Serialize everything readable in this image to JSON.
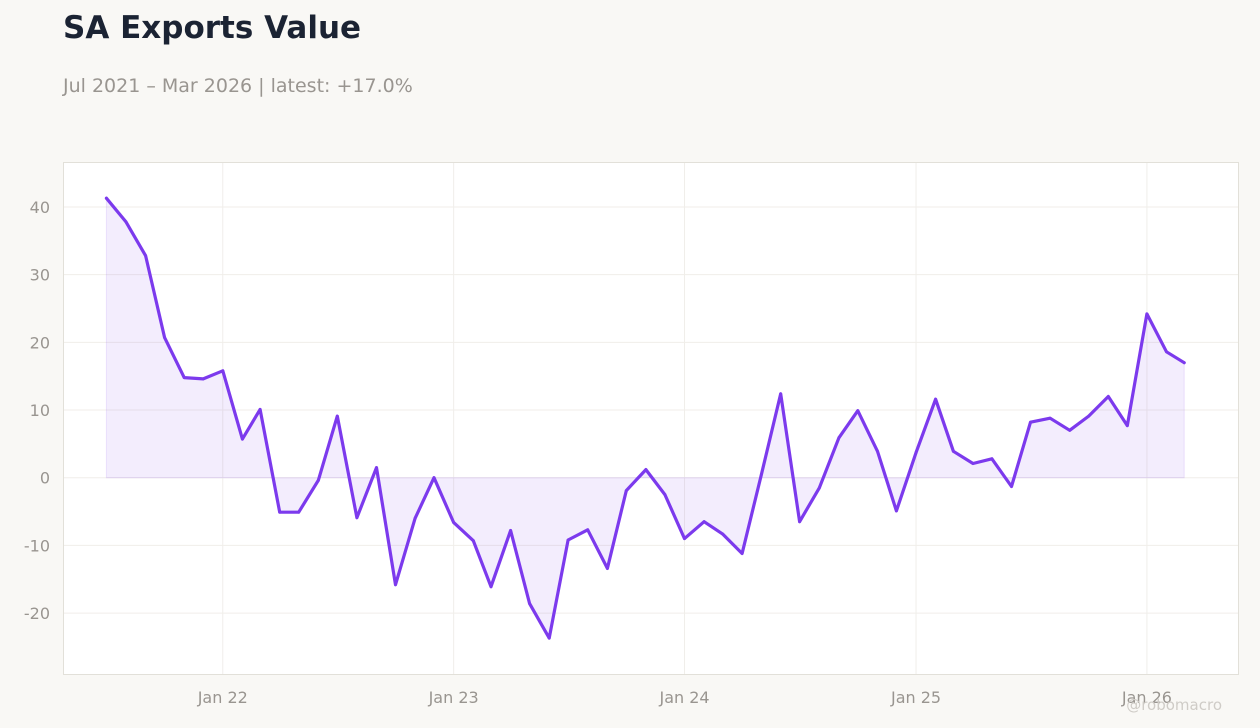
{
  "header": {
    "title": "SA Exports Value",
    "subtitle": "Jul 2021 – Mar 2026 | latest: +17.0%"
  },
  "watermark": "@robomacro",
  "colors": {
    "line": "#7c3aed",
    "fill": "#7c3aed",
    "background": "#f9f8f5",
    "plot_background": "#ffffff",
    "text_muted": "#999590",
    "title": "#1b2333"
  },
  "chart_data": {
    "type": "area",
    "title": "SA Exports Value",
    "subtitle": "Jul 2021 – Mar 2026 | latest: +17.0%",
    "xlabel": "",
    "ylabel": "",
    "ylim": [
      -29,
      46.5
    ],
    "xlim": [
      "2021-04-25",
      "2026-05-25"
    ],
    "grid": true,
    "legend": "none",
    "x_ticks": [
      {
        "date": "2022-01-01",
        "label": "Jan 22"
      },
      {
        "date": "2023-01-01",
        "label": "Jan 23"
      },
      {
        "date": "2024-01-01",
        "label": "Jan 24"
      },
      {
        "date": "2025-01-01",
        "label": "Jan 25"
      },
      {
        "date": "2026-01-01",
        "label": "Jan 26"
      }
    ],
    "y_ticks": [
      40,
      30,
      20,
      10,
      0,
      -10,
      -20
    ],
    "y_tick_labels": [
      "40",
      "30",
      "20",
      "10",
      "0",
      "-10",
      "-20"
    ],
    "x": [
      "2021-07-01",
      "2021-08-01",
      "2021-09-01",
      "2021-10-01",
      "2021-11-01",
      "2021-12-01",
      "2022-01-01",
      "2022-02-01",
      "2022-03-01",
      "2022-04-01",
      "2022-05-01",
      "2022-06-01",
      "2022-07-01",
      "2022-08-01",
      "2022-09-01",
      "2022-10-01",
      "2022-11-01",
      "2022-12-01",
      "2023-01-01",
      "2023-02-01",
      "2023-03-01",
      "2023-04-01",
      "2023-05-01",
      "2023-06-01",
      "2023-07-01",
      "2023-08-01",
      "2023-09-01",
      "2023-10-01",
      "2023-11-01",
      "2023-12-01",
      "2024-01-01",
      "2024-02-01",
      "2024-03-01",
      "2024-04-01",
      "2024-05-01",
      "2024-06-01",
      "2024-07-01",
      "2024-08-01",
      "2024-09-01",
      "2024-10-01",
      "2024-11-01",
      "2024-12-01",
      "2025-01-01",
      "2025-02-01",
      "2025-03-01",
      "2025-04-01",
      "2025-05-01",
      "2025-06-01",
      "2025-07-01",
      "2025-08-01",
      "2025-09-01",
      "2025-10-01",
      "2025-11-01",
      "2025-12-01",
      "2026-01-01",
      "2026-02-01",
      "2026-03-01"
    ],
    "series": [
      {
        "values": [
          41.3,
          37.8,
          32.8,
          20.7,
          14.8,
          14.6,
          15.8,
          5.7,
          10.1,
          -5.1,
          -5.1,
          -0.4,
          9.1,
          -5.9,
          1.5,
          -15.8,
          -6.0,
          0.0,
          -6.6,
          -9.3,
          -16.1,
          -7.8,
          -18.6,
          -23.7,
          -9.2,
          -7.7,
          -13.4,
          -1.9,
          1.2,
          -2.5,
          -9.0,
          -6.5,
          -8.3,
          -11.2,
          0.3,
          12.4,
          -6.5,
          -1.5,
          5.9,
          9.9,
          3.9,
          -4.9,
          3.7,
          11.6,
          3.9,
          2.1,
          2.8,
          -1.3,
          8.2,
          8.8,
          7.0,
          9.1,
          12.0,
          7.7,
          24.2,
          18.6,
          17.0
        ]
      }
    ]
  }
}
